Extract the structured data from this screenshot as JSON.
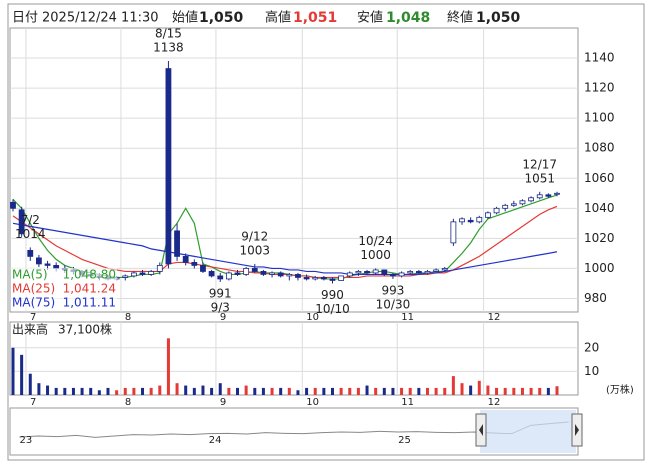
{
  "header": {
    "date_label": "日付",
    "date": "2025/12/24 11:30",
    "open_label": "始値",
    "open": "1,050",
    "high_label": "高値",
    "high": "1,051",
    "low_label": "安値",
    "low": "1,048",
    "close_label": "終値",
    "close": "1,050"
  },
  "chart_data": {
    "type": "candlestick",
    "categories": [
      null,
      null,
      "7",
      null,
      null,
      null,
      null,
      null,
      null,
      null,
      null,
      null,
      null,
      "8",
      null,
      null,
      null,
      null,
      null,
      null,
      null,
      null,
      null,
      null,
      "9",
      null,
      null,
      null,
      null,
      null,
      null,
      null,
      null,
      null,
      "10",
      null,
      null,
      null,
      null,
      null,
      null,
      null,
      null,
      null,
      null,
      "11",
      null,
      null,
      null,
      null,
      null,
      null,
      null,
      null,
      null,
      "12",
      null,
      null,
      null,
      null,
      null,
      null,
      null,
      null
    ],
    "open": [
      1044,
      1039,
      1012,
      1007,
      1003,
      1002,
      1000,
      999,
      998,
      996,
      995,
      994,
      993,
      994,
      995,
      997,
      996,
      998,
      1133,
      1025,
      1008,
      1004,
      1002,
      998,
      995,
      993,
      997,
      996,
      1000,
      998,
      996,
      997,
      995,
      996,
      994,
      993,
      994,
      993,
      992,
      995,
      997,
      998,
      997,
      999,
      996,
      995,
      997,
      998,
      997,
      998,
      999,
      1017,
      1031,
      1032,
      1031,
      1034,
      1037,
      1040,
      1042,
      1043,
      1045,
      1047,
      1049,
      1050
    ],
    "high": [
      1046,
      1041,
      1014,
      1009,
      1005,
      1004,
      1002,
      1001,
      999,
      998,
      997,
      996,
      995,
      996,
      998,
      999,
      999,
      1004,
      1138,
      1030,
      1010,
      1006,
      1004,
      999,
      997,
      998,
      999,
      1001,
      1003,
      999,
      998,
      998,
      997,
      997,
      996,
      995,
      995,
      994,
      995,
      998,
      999,
      999,
      1000,
      999,
      997,
      998,
      999,
      999,
      999,
      1000,
      1001,
      1033,
      1034,
      1034,
      1035,
      1038,
      1041,
      1043,
      1045,
      1046,
      1048,
      1051,
      1050,
      1051
    ],
    "low": [
      1038,
      1021,
      1005,
      1001,
      999,
      998,
      997,
      996,
      994,
      994,
      992,
      992,
      992,
      992,
      994,
      995,
      995,
      996,
      1000,
      1005,
      1002,
      1000,
      997,
      994,
      991,
      992,
      995,
      995,
      997,
      995,
      994,
      994,
      992,
      992,
      992,
      992,
      992,
      990,
      992,
      994,
      995,
      996,
      996,
      995,
      993,
      994,
      996,
      996,
      996,
      997,
      998,
      1015,
      1029,
      1030,
      1030,
      1033,
      1036,
      1038,
      1041,
      1042,
      1044,
      1046,
      1047,
      1048
    ],
    "close": [
      1040,
      1023,
      1008,
      1003,
      1002,
      1000,
      999,
      998,
      996,
      995,
      994,
      993,
      994,
      995,
      997,
      996,
      998,
      1002,
      1003,
      1008,
      1004,
      1002,
      998,
      995,
      993,
      997,
      996,
      1000,
      998,
      996,
      997,
      995,
      996,
      994,
      993,
      994,
      993,
      992,
      995,
      997,
      998,
      997,
      999,
      996,
      995,
      997,
      998,
      997,
      998,
      999,
      1000,
      1031,
      1033,
      1031,
      1034,
      1037,
      1040,
      1042,
      1043,
      1045,
      1047,
      1049,
      1048,
      1050
    ],
    "series": [
      {
        "name": "MA(5)",
        "color": "#2e9e2e",
        "legend_value": {
          "value": 1048.8,
          "label": "1,048.80"
        },
        "values": [
          1046,
          1040,
          1030,
          1020,
          1012,
          1006,
          1002,
          1000,
          998,
          997,
          996,
          995,
          994,
          994,
          995,
          996,
          996,
          997,
          1023,
          1030,
          1040,
          1030,
          1003,
          1001,
          998,
          996,
          996,
          997,
          998,
          997,
          997,
          997,
          996,
          995,
          995,
          994,
          993,
          993,
          993,
          995,
          996,
          997,
          998,
          998,
          997,
          996,
          996,
          997,
          997,
          998,
          998,
          1004,
          1010,
          1017,
          1026,
          1033,
          1035,
          1037,
          1039,
          1041,
          1043,
          1045,
          1047,
          1048.8
        ]
      },
      {
        "name": "MA(25)",
        "color": "#e53935",
        "legend_value": {
          "value": 1041.24,
          "label": "1,041.24"
        },
        "values": [
          1035,
          1031,
          1027,
          1023,
          1019,
          1015,
          1012,
          1009,
          1006,
          1004,
          1002,
          1000,
          999,
          998,
          998,
          998,
          998,
          998,
          1003,
          1004,
          1004,
          1003,
          1002,
          1001,
          1000,
          999,
          998,
          998,
          997,
          997,
          996,
          996,
          996,
          995,
          995,
          994,
          994,
          994,
          994,
          994,
          994,
          995,
          995,
          995,
          995,
          995,
          995,
          996,
          996,
          997,
          997,
          999,
          1002,
          1005,
          1008,
          1012,
          1016,
          1020,
          1024,
          1028,
          1032,
          1036,
          1039,
          1041.24
        ]
      },
      {
        "name": "MA(75)",
        "color": "#2233cc",
        "legend_value": {
          "value": 1011.11,
          "label": "1,011.11"
        },
        "values": [
          1030,
          1029,
          1028,
          1027,
          1026,
          1025,
          1024,
          1023,
          1022,
          1021,
          1020,
          1019,
          1018,
          1017,
          1016,
          1015,
          1013,
          1012,
          1011,
          1010,
          1009,
          1008,
          1007,
          1006,
          1005,
          1004,
          1003,
          1002,
          1001,
          1001,
          1000,
          1000,
          999,
          999,
          998,
          998,
          997,
          997,
          997,
          996,
          996,
          996,
          996,
          996,
          996,
          996,
          996,
          996,
          997,
          997,
          998,
          999,
          1000,
          1001,
          1002,
          1003,
          1004,
          1005,
          1006,
          1007,
          1008,
          1009,
          1010,
          1011.11
        ]
      }
    ],
    "annotations": [
      {
        "date": "7/2",
        "value": 1014
      },
      {
        "date": "8/15",
        "value": 1138
      },
      {
        "date": "9/3",
        "value": 991
      },
      {
        "date": "9/12",
        "value": 1003
      },
      {
        "date": "10/10",
        "value": 990
      },
      {
        "date": "10/24",
        "value": 1000
      },
      {
        "date": "10/30",
        "value": 993
      },
      {
        "date": "12/17",
        "value": 1051
      }
    ],
    "ylim": [
      971,
      1160
    ],
    "yticks": [
      980,
      1000,
      1020,
      1040,
      1060,
      1080,
      1100,
      1120,
      1140
    ],
    "grid": true,
    "up_color": "#ffffff",
    "down_color": "#1a2a8a",
    "volume": {
      "title": "出来高",
      "caption": "37,100株",
      "unit": "(万株)",
      "up_color": "#e53935",
      "down_color": "#1a2a8a",
      "values": [
        20,
        17,
        9,
        5,
        4,
        3,
        3,
        3,
        3,
        3,
        2,
        3,
        2,
        3,
        3,
        3,
        3,
        4,
        24,
        5,
        4,
        3,
        4,
        3,
        5,
        3,
        3,
        4,
        3,
        3,
        3,
        3,
        3,
        2,
        3,
        3,
        3,
        3,
        3,
        3,
        3,
        4,
        3,
        3,
        3,
        3,
        3,
        3,
        3,
        3,
        3,
        8,
        5,
        4,
        6,
        4,
        3,
        3,
        3,
        3,
        3,
        3,
        3,
        3.71
      ],
      "ylim": [
        0,
        30.9
      ],
      "yticks": [
        10,
        20
      ]
    },
    "navigator": {
      "categories": [
        "23",
        null,
        null,
        null,
        null,
        null,
        null,
        null,
        null,
        null,
        "24",
        null,
        null,
        null,
        null,
        null,
        null,
        null,
        null,
        null,
        "25",
        null,
        null,
        null,
        null,
        null,
        null,
        null,
        null,
        null
      ],
      "values": [
        1005,
        1008,
        1006,
        1010,
        1004,
        1008,
        1012,
        1011,
        1014,
        1012,
        1015,
        1016,
        1014,
        1018,
        1016,
        1015,
        1018,
        1020,
        1019,
        1022,
        1020,
        1021,
        1019,
        1018,
        1020,
        1017,
        1015,
        1040,
        1045,
        1050
      ],
      "ylim": [
        960,
        1080
      ],
      "color": "#888888"
    }
  }
}
